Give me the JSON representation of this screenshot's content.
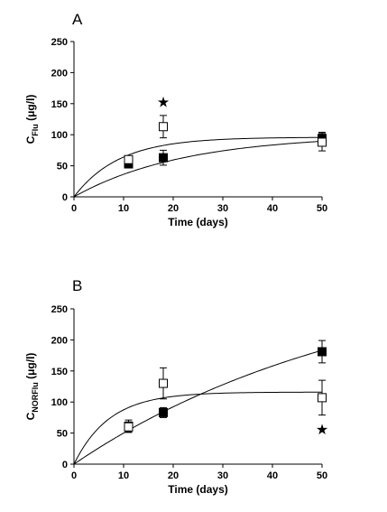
{
  "chart_data": [
    {
      "type": "scatter",
      "panel": "A",
      "xlabel": "Time (days)",
      "ylabel_main": "C",
      "ylabel_sub": "Flu",
      "ylabel_unit": " (μg/l)",
      "xlim": [
        0,
        50
      ],
      "ylim": [
        0,
        250
      ],
      "xticks": [
        0,
        10,
        20,
        30,
        40,
        50
      ],
      "yticks": [
        0,
        50,
        100,
        150,
        200,
        250
      ],
      "grid": false,
      "series": [
        {
          "marker": "filled-square",
          "points": [
            {
              "x": 11,
              "y": 53,
              "err": 5
            },
            {
              "x": 18,
              "y": 63,
              "err": 12
            },
            {
              "x": 50,
              "y": 94,
              "err": 10
            }
          ],
          "fit_curve": {
            "plateau": 100,
            "k": 0.045
          }
        },
        {
          "marker": "open-square",
          "points": [
            {
              "x": 11,
              "y": 60,
              "err": 5
            },
            {
              "x": 18,
              "y": 113,
              "err": 18
            },
            {
              "x": 50,
              "y": 88,
              "err": 14
            }
          ],
          "fit_curve": {
            "plateau": 96,
            "k": 0.11
          }
        }
      ],
      "annotations": [
        {
          "text": "★",
          "x": 18,
          "y": 153
        }
      ]
    },
    {
      "type": "scatter",
      "panel": "B",
      "xlabel": "Time (days)",
      "ylabel_main": "C",
      "ylabel_sub": "NORFlu",
      "ylabel_unit": " (μg/l)",
      "xlim": [
        0,
        50
      ],
      "ylim": [
        0,
        250
      ],
      "xticks": [
        0,
        10,
        20,
        30,
        40,
        50
      ],
      "yticks": [
        0,
        50,
        100,
        150,
        200,
        250
      ],
      "grid": false,
      "series": [
        {
          "marker": "filled-square",
          "points": [
            {
              "x": 11,
              "y": 61,
              "err": 10
            },
            {
              "x": 18,
              "y": 83,
              "err": 8
            },
            {
              "x": 50,
              "y": 181,
              "err": 18
            }
          ],
          "fit_curve": {
            "plateau": 320,
            "k": 0.017
          }
        },
        {
          "marker": "open-square",
          "points": [
            {
              "x": 11,
              "y": 60,
              "err": 8
            },
            {
              "x": 18,
              "y": 130,
              "err": 25
            },
            {
              "x": 50,
              "y": 107,
              "err": 28
            }
          ],
          "fit_curve": {
            "plateau": 116,
            "k": 0.14
          }
        }
      ],
      "annotations": [
        {
          "text": "★",
          "x": 50,
          "y": 57
        }
      ]
    }
  ]
}
